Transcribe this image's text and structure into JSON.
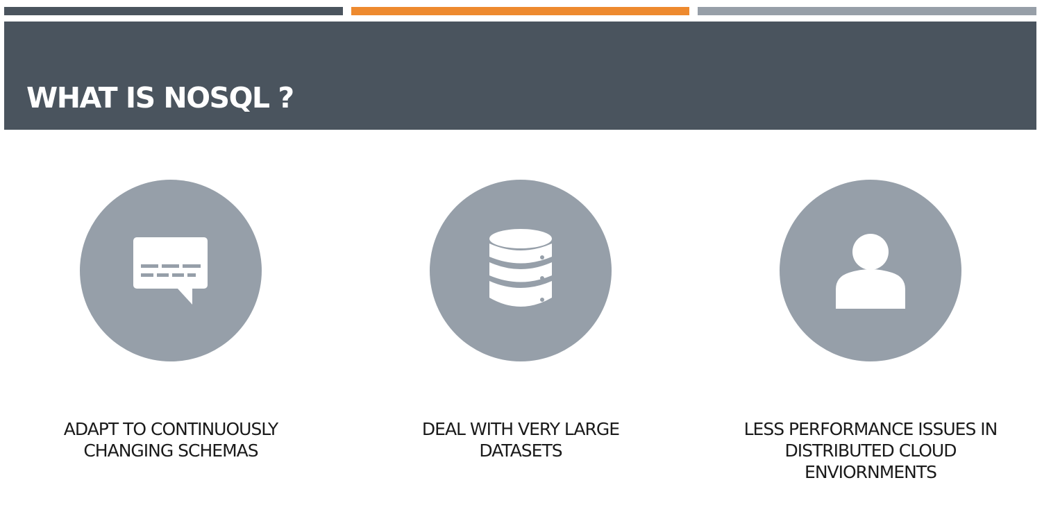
{
  "slide": {
    "title": "WHAT IS NOSQL ?",
    "accent_colors": {
      "dark": "#4a545e",
      "orange": "#ee8a2f",
      "gray": "#979fa8",
      "circle": "#969fa9"
    }
  },
  "features": [
    {
      "icon": "chat-bubble-icon",
      "caption_lines": [
        "ADAPT TO CONTINUOUSLY",
        "CHANGING SCHEMAS"
      ]
    },
    {
      "icon": "database-icon",
      "caption_lines": [
        "DEAL WITH VERY LARGE",
        "DATASETS"
      ]
    },
    {
      "icon": "user-icon",
      "caption_lines": [
        "LESS PERFORMANCE ISSUES IN",
        "DISTRIBUTED CLOUD",
        "ENVIORNMENTS"
      ]
    }
  ]
}
